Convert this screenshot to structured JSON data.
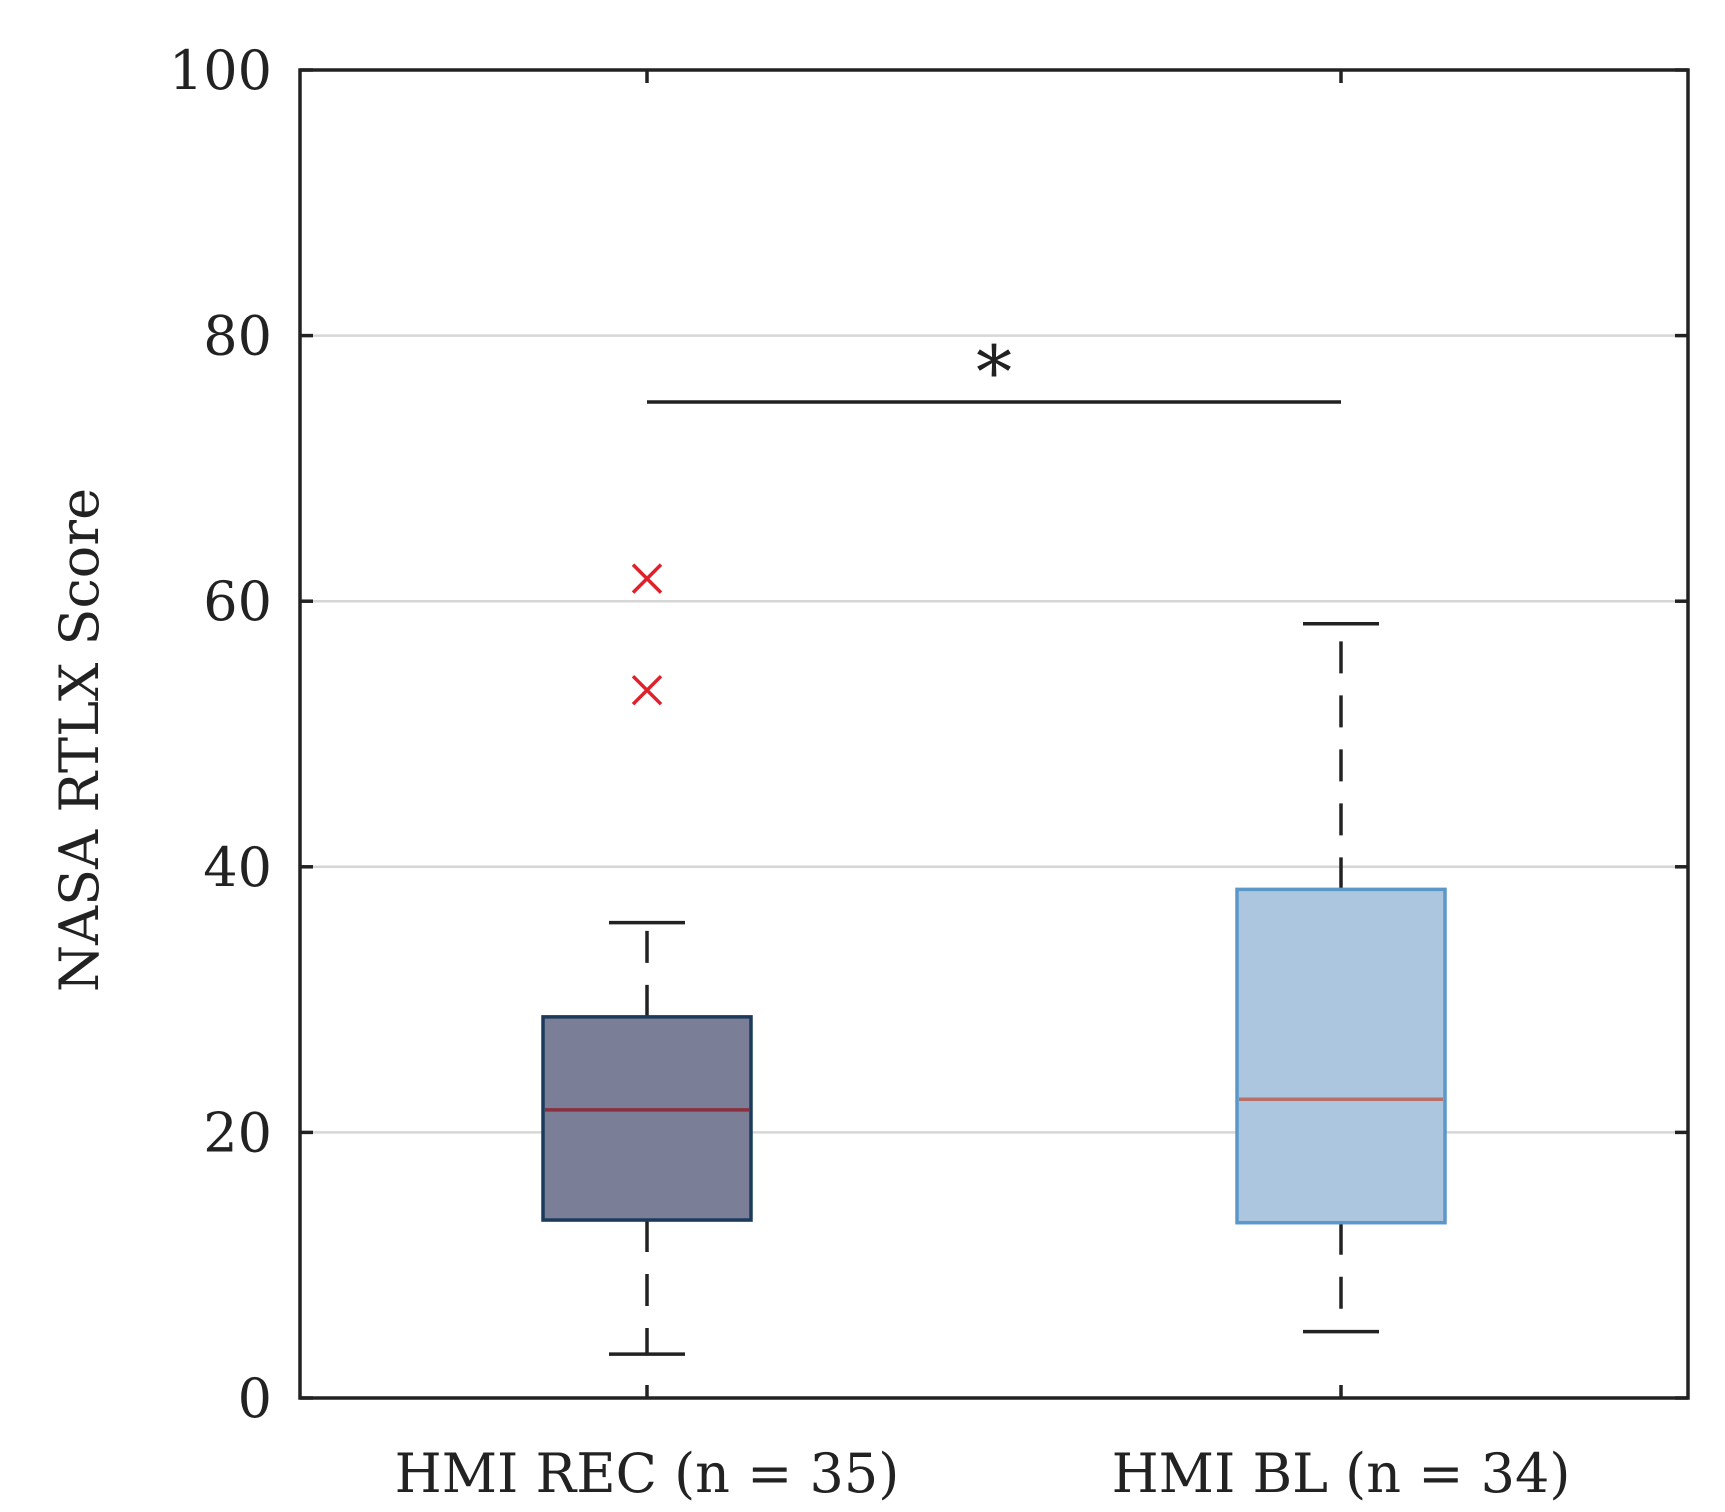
{
  "chart_data": {
    "type": "boxplot",
    "title": "",
    "xlabel": "",
    "ylabel": "NASA RTLX Score",
    "ylim": [
      0,
      100
    ],
    "yticks": [
      0,
      20,
      40,
      60,
      80,
      100
    ],
    "grid": true,
    "groups": [
      {
        "label": "HMI REC (n = 35)",
        "whisker_low": 3.3,
        "q1": 13.4,
        "median": 21.7,
        "q3": 28.7,
        "whisker_high": 35.8,
        "outliers": [
          53.3,
          61.7
        ],
        "fill": "#7a7f97",
        "stroke": "#1b3a5c",
        "median_color": "#8a2f3e"
      },
      {
        "label": "HMI BL (n = 34)",
        "whisker_low": 5.0,
        "q1": 13.2,
        "median": 22.5,
        "q3": 38.3,
        "whisker_high": 58.3,
        "outliers": [],
        "fill": "#adc6e0",
        "stroke": "#5b98c7",
        "median_color": "#b9706b"
      }
    ],
    "significance": {
      "from_group": 0,
      "to_group": 1,
      "y": 75,
      "label": "*"
    },
    "outlier_color": "#e0202a"
  }
}
